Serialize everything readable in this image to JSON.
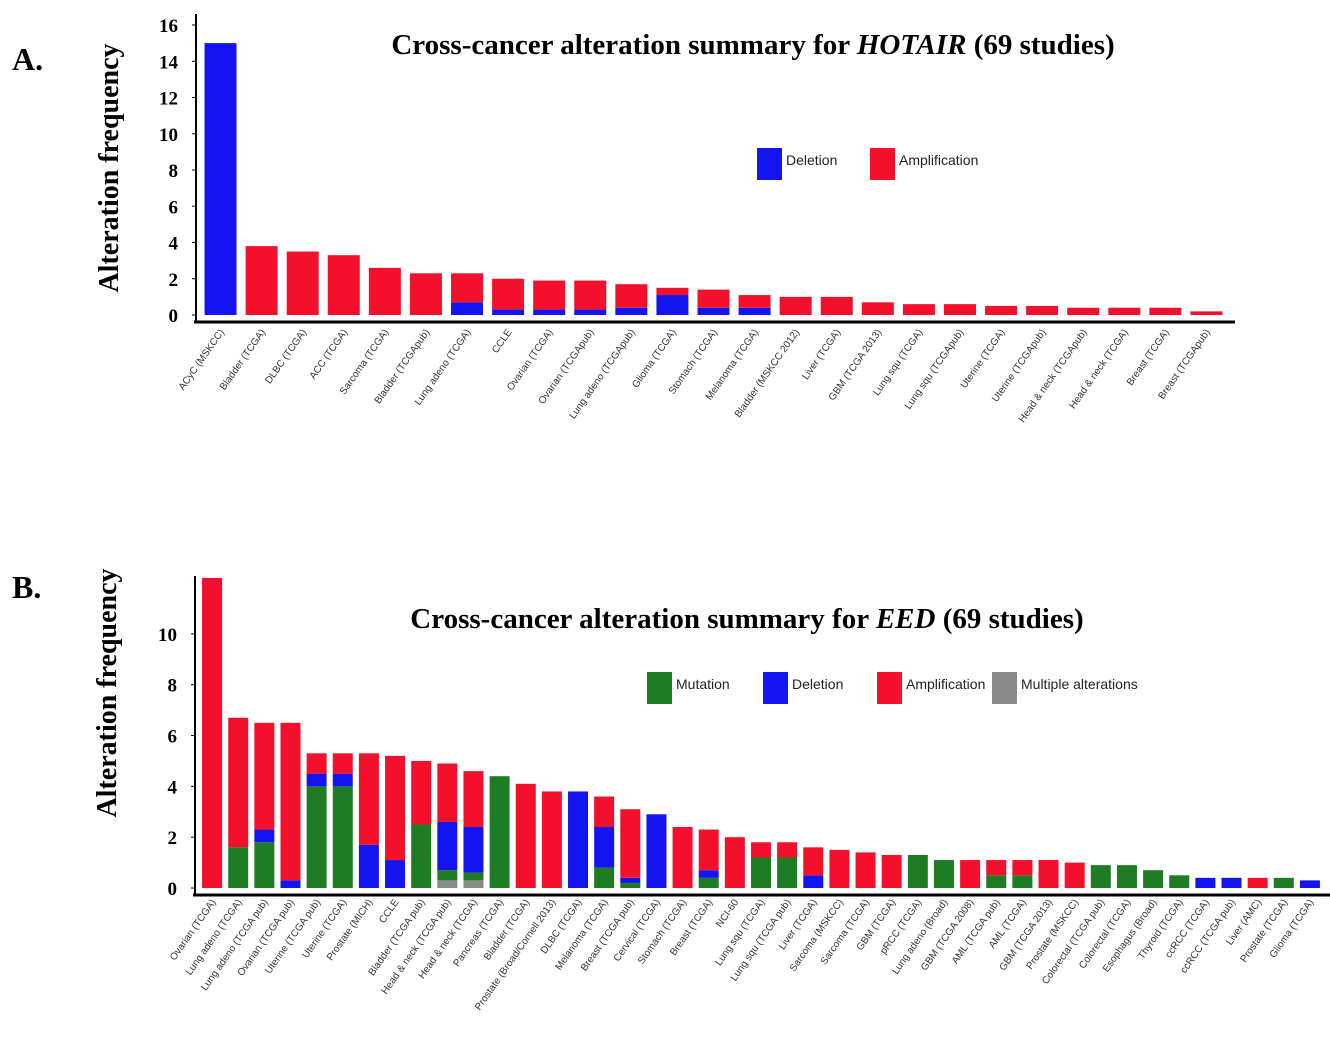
{
  "chart_data": [
    {
      "type": "bar",
      "stacked": true,
      "panel_label": "A.",
      "title_parts": [
        "Cross-cancer alteration summary for ",
        "HOTAIR",
        " (69 studies)"
      ],
      "y_label": "Alteration frequency",
      "categories": [
        "ACyC (MSKCC)",
        "Bladder (TCGA)",
        "DLBC (TCGA)",
        "ACC (TCGA)",
        "Sarcoma (TCGA)",
        "Bladder (TCGApub)",
        "Lung adeno (TCGA)",
        "CCLE",
        "Ovarian (TCGA)",
        "Ovarian (TCGApub)",
        "Lung adeno (TCGApub)",
        "Glioma (TCGA)",
        "Stomach (TCGA)",
        "Melanoma (TCGA)",
        "Bladder (MSKCC 2012)",
        "Liver (TCGA)",
        "GBM (TCGA 2013)",
        "Lung squ (TCGA)",
        "Lung squ (TCGApub)",
        "Uterine (TCGA)",
        "Uterine (TCGApub)",
        "Head & neck (TCGApub)",
        "Head & neck (TCGA)",
        "Breast (TCGA)",
        "Breast (TCGApub)"
      ],
      "series": [
        {
          "name": "Deletion",
          "color": "#1414f0",
          "values": [
            15,
            0,
            0,
            0,
            0,
            0,
            0.7,
            0.3,
            0.3,
            0.3,
            0.4,
            1.1,
            0.4,
            0.4,
            0,
            0,
            0,
            0,
            0,
            0,
            0,
            0,
            0,
            0,
            0
          ]
        },
        {
          "name": "Amplification",
          "color": "#f2102c",
          "values": [
            0,
            3.8,
            3.5,
            3.3,
            2.6,
            2.3,
            1.6,
            1.7,
            1.6,
            1.6,
            1.3,
            0.4,
            1.0,
            0.7,
            1.0,
            1.0,
            0.7,
            0.6,
            0.6,
            0.5,
            0.5,
            0.4,
            0.4,
            0.4,
            0.2
          ]
        }
      ],
      "ylim": [
        0,
        16
      ],
      "yticks": [
        0,
        2,
        4,
        6,
        8,
        10,
        12,
        14,
        16
      ],
      "grid": false
    },
    {
      "type": "bar",
      "stacked": true,
      "panel_label": "B.",
      "title_parts": [
        "Cross-cancer alteration summary for ",
        "EED",
        " (69 studies)"
      ],
      "y_label": "Alteration frequency",
      "categories": [
        "Ovarian (TCGA)",
        "Lung adeno (TCGA)",
        "Lung adeno (TCGA pub)",
        "Ovarian (TCGA pub)",
        "Uterine (TCGA pub)",
        "Uterine (TCGA)",
        "Prostate (MICH)",
        "CCLE",
        "Bladder (TCGA pub)",
        "Head & neck (TCGA pub)",
        "Head & neck (TCGA)",
        "Pancreas (TCGA)",
        "Bladder (TCGA)",
        "Prostate (Broad/Cornell 2013)",
        "DLBC (TCGA)",
        "Melanoma (TCGA)",
        "Breast (TCGA pub)",
        "Cervical (TCGA)",
        "Stomach (TCGA)",
        "Breast (TCGA)",
        "NCI-60",
        "Lung squ (TCGA)",
        "Lung squ (TCGA pub)",
        "Liver (TCGA)",
        "Sarcoma (MSKCC)",
        "Sarcoma (TCGA)",
        "GBM (TCGA)",
        "pRCC (TCGA)",
        "Lung adeno (Broad)",
        "GBM (TCGA 2008)",
        "AML (TCGA pub)",
        "AML (TCGA)",
        "GBM (TCGA 2013)",
        "Prostate (MSKCC)",
        "Colorectal (TCGA pub)",
        "Colorectal (TCGA)",
        "Esophagus (Broad)",
        "Thyroid (TCGA)",
        "ccRCC (TCGA)",
        "ccRCC (TCGA pub)",
        "Liver (AMC)",
        "Prostate (TCGA)",
        "Glioma (TCGA)"
      ],
      "series": [
        {
          "name": "Multiple alterations",
          "color": "#8a8a8a",
          "values": [
            0,
            0,
            0,
            0,
            0,
            0,
            0,
            0,
            0,
            0.3,
            0.3,
            0,
            0,
            0,
            0,
            0,
            0,
            0,
            0,
            0,
            0,
            0,
            0,
            0,
            0,
            0,
            0,
            0,
            0,
            0,
            0,
            0,
            0,
            0,
            0,
            0,
            0,
            0,
            0,
            0,
            0,
            0,
            0
          ]
        },
        {
          "name": "Mutation",
          "color": "#1e7d24",
          "values": [
            0,
            1.6,
            1.8,
            0,
            4.0,
            4.0,
            0,
            0,
            2.5,
            0.4,
            0.3,
            4.4,
            0,
            0,
            0,
            0.8,
            0.2,
            0,
            0,
            0.4,
            0,
            1.2,
            1.2,
            0,
            0,
            0,
            0,
            1.3,
            1.1,
            0,
            0.5,
            0.5,
            0,
            0,
            0.9,
            0.9,
            0.7,
            0.5,
            0,
            0,
            0,
            0.4,
            0
          ]
        },
        {
          "name": "Deletion",
          "color": "#1414f0",
          "values": [
            0,
            0,
            0.5,
            0.3,
            0.5,
            0.5,
            1.7,
            1.1,
            0,
            1.9,
            1.8,
            0,
            0,
            0,
            3.8,
            1.6,
            0.2,
            2.9,
            0,
            0.3,
            0,
            0,
            0,
            0.5,
            0,
            0,
            0,
            0,
            0,
            0,
            0,
            0,
            0,
            0,
            0,
            0,
            0,
            0,
            0.4,
            0.4,
            0,
            0,
            0.3
          ]
        },
        {
          "name": "Amplification",
          "color": "#f2102c",
          "values": [
            12.2,
            5.1,
            4.2,
            6.2,
            0.8,
            0.8,
            3.6,
            4.1,
            2.5,
            2.3,
            2.2,
            0,
            4.1,
            3.8,
            0,
            1.2,
            2.7,
            0,
            2.4,
            1.6,
            2.0,
            0.6,
            0.6,
            1.1,
            1.5,
            1.4,
            1.3,
            0,
            0,
            1.1,
            0.6,
            0.6,
            1.1,
            1.0,
            0,
            0,
            0,
            0,
            0,
            0,
            0.4,
            0,
            0
          ]
        }
      ],
      "ylim": [
        0,
        12.2
      ],
      "yticks": [
        0,
        2,
        4,
        6,
        8,
        10
      ],
      "grid": false
    }
  ]
}
